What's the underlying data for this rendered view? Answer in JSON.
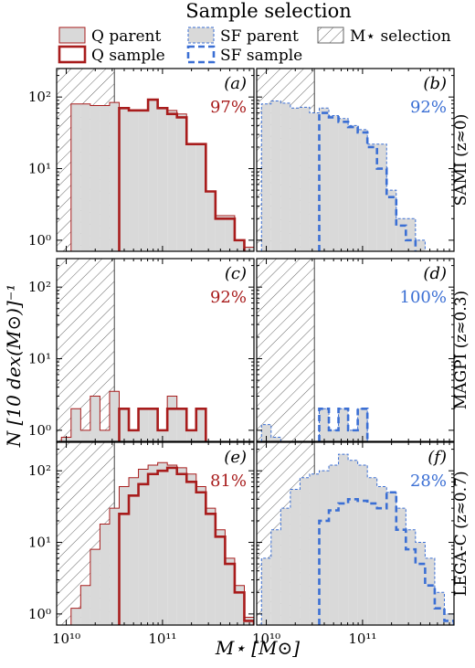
{
  "figure": {
    "title": "Sample selection",
    "xlabel": "M⋆ [M⊙]",
    "ylabel": "N [10 dex(M⊙)]⁻¹",
    "legend": {
      "items": [
        {
          "label": "Q parent",
          "style": "q-parent"
        },
        {
          "label": "Q sample",
          "style": "q-sample"
        },
        {
          "label": "SF parent",
          "style": "sf-parent"
        },
        {
          "label": "SF sample",
          "style": "sf-sample"
        },
        {
          "label": "M⋆ selection",
          "style": "hatch"
        }
      ]
    },
    "colors": {
      "q": "#a81c1c",
      "sf": "#3b6fd4",
      "parent_fill": "#d9d9d9",
      "hatch": "#666666"
    }
  },
  "chart_data": {
    "type": "histogram-grid",
    "log_x": true,
    "log_y": true,
    "xlim": [
      9.9,
      11.95
    ],
    "ylim": [
      0.7,
      250
    ],
    "x_ticks": [
      {
        "v": 10,
        "label": "10¹⁰"
      },
      {
        "v": 11,
        "label": "10¹¹"
      }
    ],
    "y_ticks": [
      {
        "v": 1,
        "label": "10⁰"
      },
      {
        "v": 10,
        "label": "10¹"
      },
      {
        "v": 100,
        "label": "10²"
      }
    ],
    "mass_cut": 10.5,
    "bin_edges": [
      9.95,
      10.05,
      10.15,
      10.25,
      10.35,
      10.45,
      10.55,
      10.65,
      10.75,
      10.85,
      10.95,
      11.05,
      11.15,
      11.25,
      11.35,
      11.45,
      11.55,
      11.65,
      11.75,
      11.85,
      11.95
    ],
    "row_labels": [
      "SAMI (z≈0)",
      "MAGPI (z≈0.3)",
      "LEGA-C (z≈0.7)"
    ],
    "panels": [
      {
        "tag": "(a)",
        "percent": "97%",
        "color": "q",
        "parent": [
          0,
          80,
          80,
          76,
          76,
          84,
          70,
          65,
          65,
          92,
          70,
          65,
          58,
          22,
          22,
          4.8,
          2.2,
          2.2,
          1.0,
          0.8
        ],
        "sample": [
          0,
          0,
          0,
          0,
          0,
          0,
          70,
          65,
          65,
          92,
          70,
          58,
          52,
          22,
          22,
          4.8,
          2.0,
          2.0,
          1.0,
          0
        ]
      },
      {
        "tag": "(b)",
        "percent": "92%",
        "color": "sf",
        "parent": [
          80,
          88,
          82,
          70,
          72,
          60,
          70,
          55,
          50,
          40,
          35,
          22,
          22,
          5,
          2,
          2,
          1,
          0,
          0,
          0
        ],
        "sample": [
          0,
          0,
          0,
          0,
          0,
          0,
          60,
          52,
          45,
          38,
          32,
          20,
          10,
          4,
          1.6,
          1.0,
          0,
          0,
          0,
          0
        ]
      },
      {
        "tag": "(c)",
        "percent": "92%",
        "color": "q",
        "parent": [
          0.8,
          2.0,
          1.0,
          3.0,
          1.0,
          3.5,
          2.0,
          1.0,
          2.0,
          2.0,
          1.0,
          3.0,
          2.0,
          1.0,
          2.0,
          0,
          0,
          0,
          0,
          0
        ],
        "sample": [
          0,
          0,
          0,
          0,
          0,
          0,
          2.0,
          1.0,
          2.0,
          2.0,
          1.0,
          2.0,
          2.0,
          1.0,
          2.0,
          0,
          0,
          0,
          0,
          0
        ]
      },
      {
        "tag": "(d)",
        "percent": "100%",
        "color": "sf",
        "parent": [
          1.2,
          0.8,
          0,
          0,
          0,
          0,
          2.0,
          1.0,
          2.0,
          1.0,
          2.0,
          0,
          0,
          0,
          0,
          0,
          0,
          0,
          0,
          0
        ],
        "sample": [
          0,
          0,
          0,
          0,
          0,
          0,
          2.0,
          1.0,
          2.0,
          1.0,
          2.0,
          0,
          0,
          0,
          0,
          0,
          0,
          0,
          0,
          0
        ]
      },
      {
        "tag": "(e)",
        "percent": "81%",
        "color": "q",
        "parent": [
          0,
          1.2,
          2.5,
          8,
          18,
          30,
          60,
          80,
          105,
          120,
          130,
          120,
          110,
          90,
          60,
          30,
          15,
          6,
          2.5,
          0.9
        ],
        "sample": [
          0,
          0,
          0,
          0,
          0,
          0,
          25,
          45,
          65,
          90,
          100,
          110,
          90,
          70,
          50,
          25,
          12,
          5,
          2,
          0.8
        ]
      },
      {
        "tag": "(f)",
        "percent": "28%",
        "color": "sf",
        "parent": [
          6,
          15,
          30,
          55,
          80,
          90,
          100,
          120,
          170,
          140,
          120,
          80,
          60,
          50,
          30,
          15,
          10,
          6,
          2,
          1
        ],
        "sample": [
          0,
          0,
          0,
          0,
          0,
          0,
          20,
          28,
          35,
          40,
          38,
          35,
          30,
          50,
          15,
          8,
          5,
          2.5,
          1.2,
          0.8
        ]
      }
    ]
  }
}
